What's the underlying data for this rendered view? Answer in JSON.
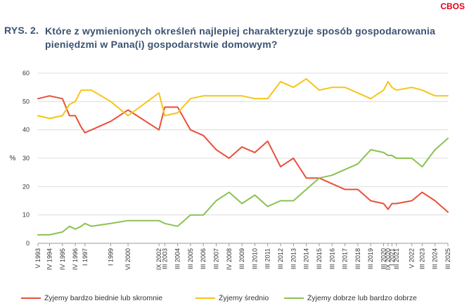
{
  "header": {
    "brand": "CBOS",
    "figure_label": "RYS. 2.",
    "title": "Które z wymienionych określeń najlepiej charakteryzuje sposób gospodarowania pieniędzmi w Pana(i) gospodarstwie domowym?"
  },
  "colors": {
    "poor": "#e8503a",
    "average": "#f5c518",
    "good": "#8cc152",
    "grid": "#dddddd",
    "axis": "#999999"
  },
  "chart_data": {
    "type": "line",
    "title": "Które z wymienionych określeń najlepiej charakteryzuje sposób gospodarowania pieniędzmi w Pana(i) gospodarstwie domowym?",
    "xlabel": "",
    "ylabel": "%",
    "ylim": [
      0,
      60
    ],
    "yticks": [
      0,
      10,
      20,
      30,
      40,
      50,
      60
    ],
    "grid": true,
    "legend_position": "bottom",
    "x": [
      1993.35,
      1994.25,
      1995.25,
      1995.8,
      1996.25,
      1996.7,
      1997.0,
      1997.5,
      1999.0,
      2000.35,
      2002.75,
      2003.2,
      2004.2,
      2005.2,
      2006.2,
      2007.2,
      2008.2,
      2009.2,
      2010.2,
      2011.2,
      2012.2,
      2013.2,
      2014.2,
      2015.2,
      2016.2,
      2017.2,
      2018.2,
      2019.2,
      2020.2,
      2020.55,
      2020.85,
      2021.2,
      2022.4,
      2023.2,
      2024.2,
      2025.2
    ],
    "tick_labels": [
      {
        "label": "V 1993",
        "x": 1993.35
      },
      {
        "label": "IV 1994",
        "x": 1994.25
      },
      {
        "label": "IV 1995",
        "x": 1995.25
      },
      {
        "label": "IV 1996",
        "x": 1996.25
      },
      {
        "label": "I 1997",
        "x": 1997.0
      },
      {
        "label": "I 1999",
        "x": 1999.0
      },
      {
        "label": "VI 2000",
        "x": 2000.35
      },
      {
        "label": "IX 2002",
        "x": 2002.75
      },
      {
        "label": "III 2003",
        "x": 2003.2
      },
      {
        "label": "III 2004",
        "x": 2004.2
      },
      {
        "label": "III 2005",
        "x": 2005.2
      },
      {
        "label": "III 2006",
        "x": 2006.2
      },
      {
        "label": "III 2007",
        "x": 2007.2
      },
      {
        "label": "IV 2008",
        "x": 2008.2
      },
      {
        "label": "III 2009",
        "x": 2009.2
      },
      {
        "label": "III 2010",
        "x": 2010.2
      },
      {
        "label": "III 2011",
        "x": 2011.2
      },
      {
        "label": "III 2012",
        "x": 2012.2
      },
      {
        "label": "III 2013",
        "x": 2013.2
      },
      {
        "label": "III 2014",
        "x": 2014.2
      },
      {
        "label": "III 2015",
        "x": 2015.2
      },
      {
        "label": "III 2016",
        "x": 2016.2
      },
      {
        "label": "III 2017",
        "x": 2017.2
      },
      {
        "label": "III 2018",
        "x": 2018.2
      },
      {
        "label": "III 2019",
        "x": 2019.2
      },
      {
        "label": "III 2020",
        "x": 2020.2
      },
      {
        "label": "IX 2020",
        "x": 2020.55
      },
      {
        "label": "I 2021",
        "x": 2020.85
      },
      {
        "label": "III 2021",
        "x": 2021.2
      },
      {
        "label": "V 2022",
        "x": 2022.4
      },
      {
        "label": "III 2023",
        "x": 2023.2
      },
      {
        "label": "III 2024",
        "x": 2024.2
      },
      {
        "label": "III 2025",
        "x": 2025.2
      }
    ],
    "series": [
      {
        "name": "Żyjemy bardzo biednie lub skromnie",
        "color_key": "poor",
        "values": [
          51,
          52,
          51,
          45,
          45,
          41,
          39,
          40,
          43,
          47,
          40,
          48,
          48,
          40,
          38,
          33,
          30,
          34,
          32,
          36,
          27,
          30,
          23,
          23,
          21,
          19,
          19,
          15,
          14,
          12,
          14,
          14,
          15,
          18,
          15,
          11
        ]
      },
      {
        "name": "Żyjemy średnio",
        "color_key": "average",
        "values": [
          45,
          44,
          45,
          49,
          50,
          54,
          54,
          54,
          50,
          45,
          53,
          45,
          46,
          51,
          52,
          52,
          52,
          52,
          51,
          51,
          57,
          55,
          58,
          54,
          55,
          55,
          53,
          51,
          54,
          57,
          55,
          54,
          55,
          54,
          52,
          52
        ]
      },
      {
        "name": "Żyjemy dobrze lub bardzo dobrze",
        "color_key": "good",
        "values": [
          3,
          3,
          4,
          6,
          5,
          6,
          7,
          6,
          7,
          8,
          8,
          7,
          6,
          10,
          10,
          15,
          18,
          14,
          17,
          13,
          15,
          15,
          19,
          23,
          24,
          26,
          28,
          33,
          32,
          31,
          31,
          30,
          30,
          27,
          33,
          37
        ]
      }
    ]
  }
}
